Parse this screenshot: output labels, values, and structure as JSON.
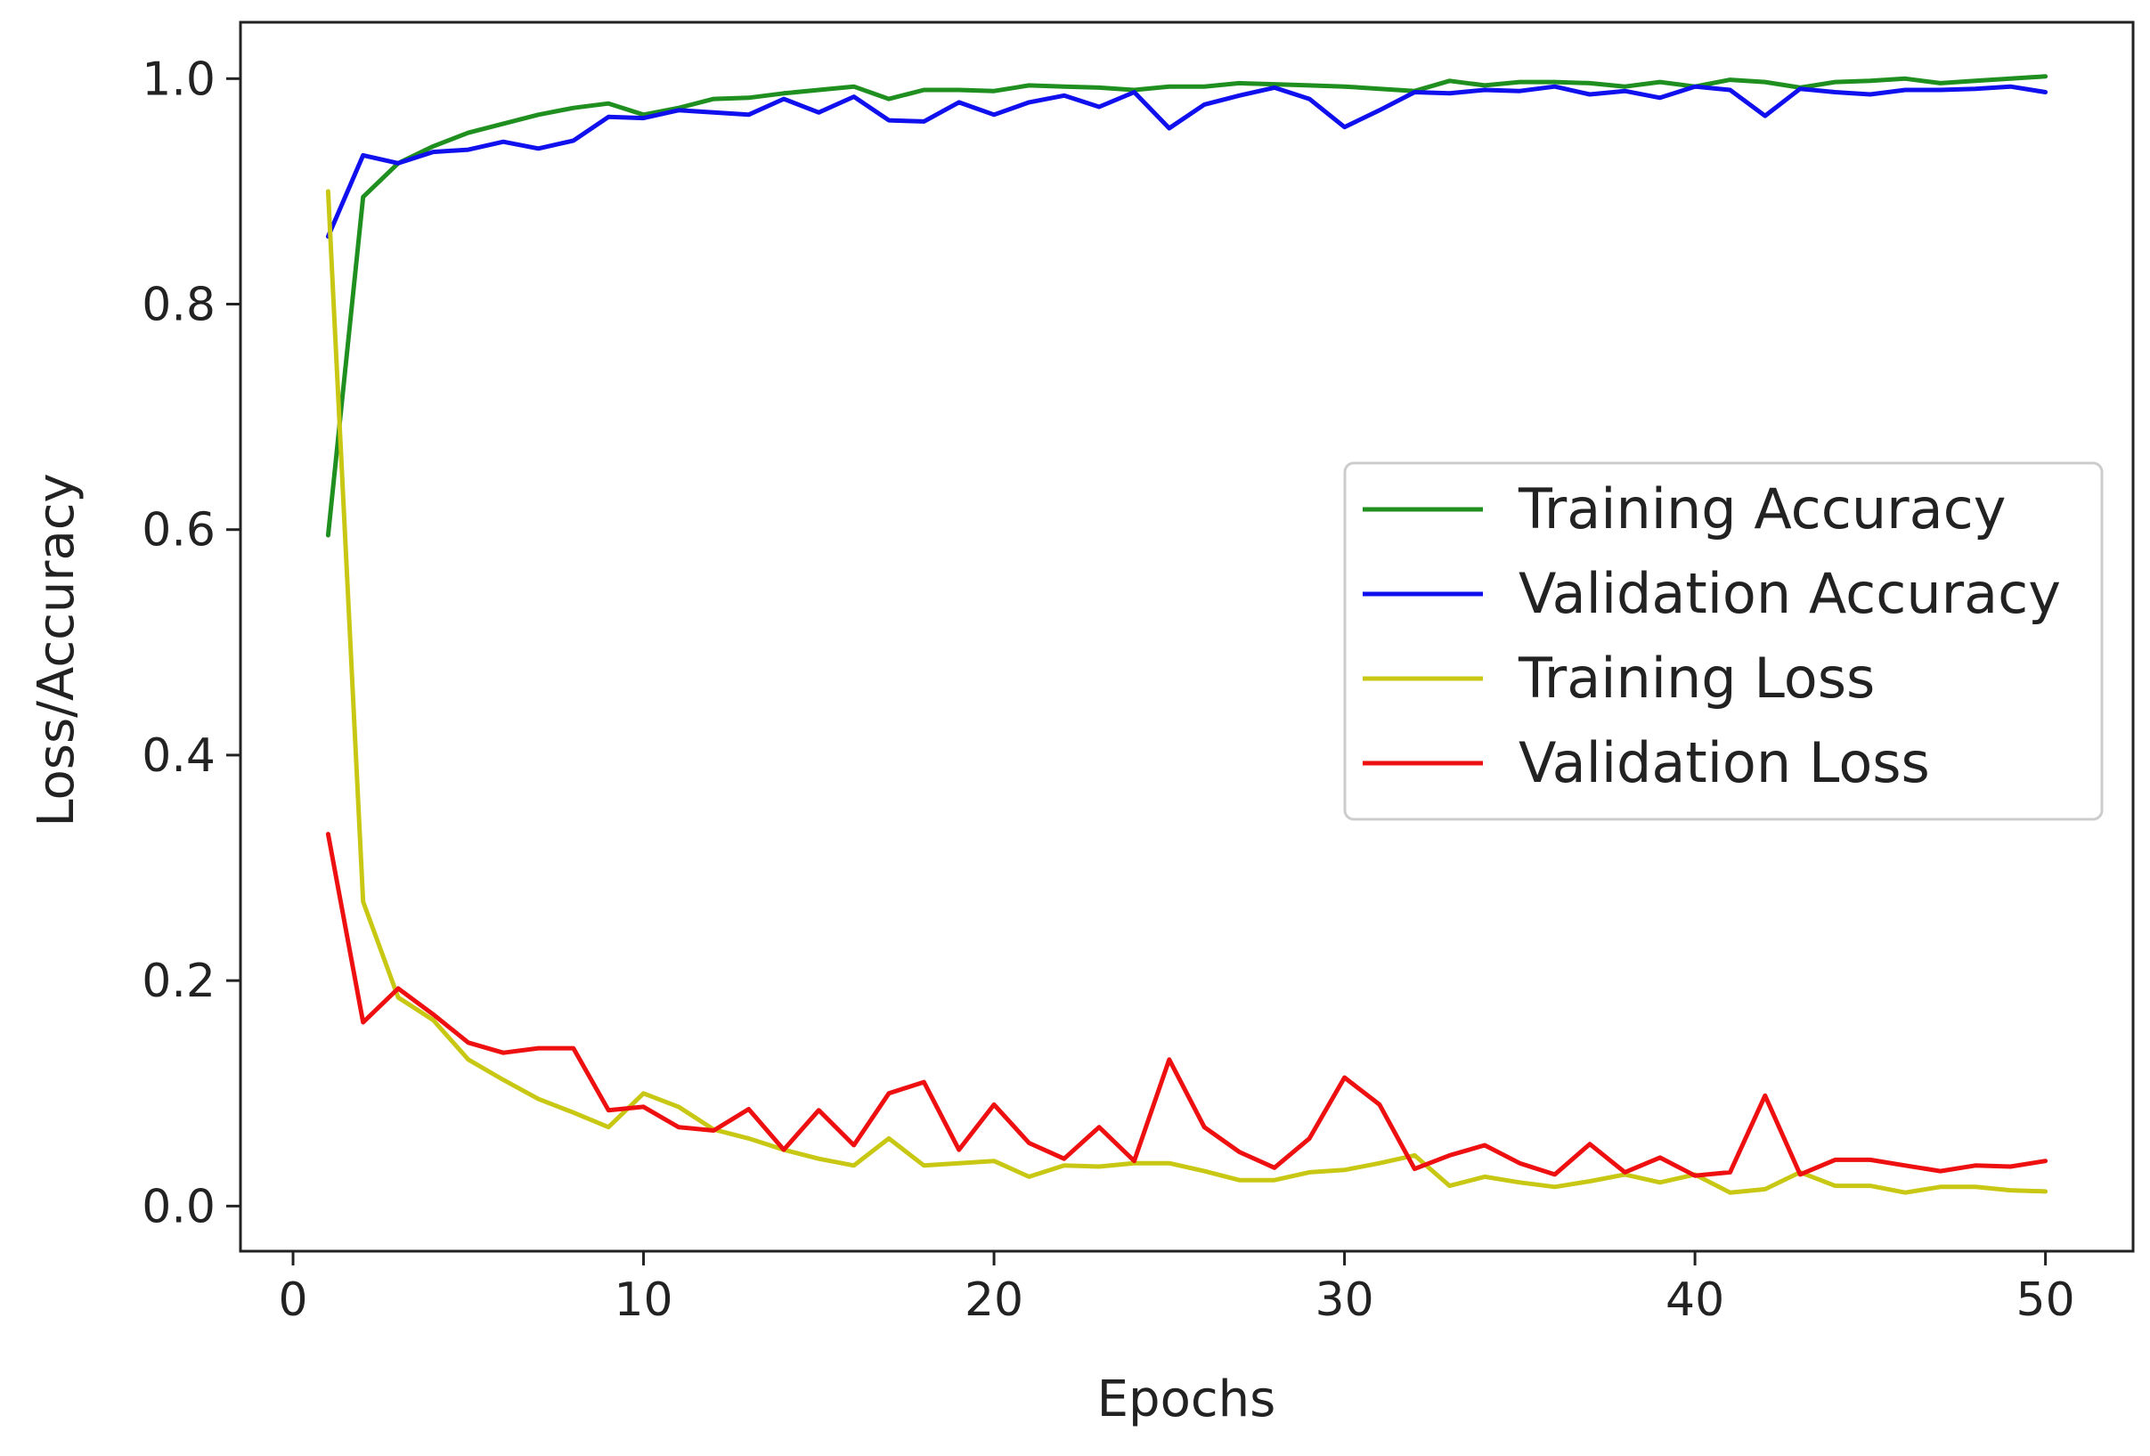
{
  "chart_data": {
    "type": "line",
    "title": "",
    "xlabel": "Epochs",
    "ylabel": "Loss/Accuracy",
    "xlim": [
      -1.5,
      52.5
    ],
    "ylim": [
      -0.04,
      1.05
    ],
    "xticks": [
      "0",
      "10",
      "20",
      "30",
      "40",
      "50"
    ],
    "yticks": [
      "0.0",
      "0.2",
      "0.4",
      "0.6",
      "0.8",
      "1.0"
    ],
    "grid": false,
    "legend_position": "center-right",
    "x": [
      1,
      2,
      3,
      4,
      5,
      6,
      7,
      8,
      9,
      10,
      11,
      12,
      13,
      14,
      15,
      16,
      17,
      18,
      19,
      20,
      21,
      22,
      23,
      24,
      25,
      26,
      27,
      28,
      29,
      30,
      31,
      32,
      33,
      34,
      35,
      36,
      37,
      38,
      39,
      40,
      41,
      42,
      43,
      44,
      45,
      46,
      47,
      48,
      49,
      50
    ],
    "series": [
      {
        "name": "Training Accuracy",
        "color": "#1f8f1f",
        "values": [
          0.595,
          0.895,
          0.925,
          0.94,
          0.952,
          0.96,
          0.968,
          0.974,
          0.978,
          0.968,
          0.974,
          0.982,
          0.983,
          0.987,
          0.99,
          0.993,
          0.982,
          0.99,
          0.99,
          0.989,
          0.994,
          0.993,
          0.992,
          0.99,
          0.993,
          0.993,
          0.996,
          0.995,
          0.994,
          0.993,
          0.991,
          0.989,
          0.998,
          0.994,
          0.997,
          0.997,
          0.996,
          0.993,
          0.997,
          0.993,
          0.999,
          0.997,
          0.992,
          0.997,
          0.998,
          1.0,
          0.996,
          0.998,
          1.0,
          1.002
        ]
      },
      {
        "name": "Validation Accuracy",
        "color": "#1010ee",
        "values": [
          0.86,
          0.932,
          0.925,
          0.935,
          0.937,
          0.944,
          0.938,
          0.945,
          0.966,
          0.965,
          0.972,
          0.97,
          0.968,
          0.982,
          0.97,
          0.984,
          0.963,
          0.962,
          0.979,
          0.968,
          0.979,
          0.985,
          0.975,
          0.988,
          0.956,
          0.977,
          0.985,
          0.992,
          0.982,
          0.957,
          0.972,
          0.988,
          0.987,
          0.99,
          0.989,
          0.993,
          0.986,
          0.989,
          0.983,
          0.993,
          0.99,
          0.967,
          0.991,
          0.988,
          0.986,
          0.99,
          0.99,
          0.991,
          0.993,
          0.988
        ]
      },
      {
        "name": "Training Loss",
        "color": "#c8c814",
        "values": [
          0.9,
          0.27,
          0.185,
          0.165,
          0.13,
          0.112,
          0.095,
          0.083,
          0.07,
          0.1,
          0.088,
          0.068,
          0.06,
          0.05,
          0.042,
          0.036,
          0.06,
          0.036,
          0.038,
          0.04,
          0.026,
          0.036,
          0.035,
          0.038,
          0.038,
          0.031,
          0.023,
          0.023,
          0.03,
          0.032,
          0.038,
          0.045,
          0.018,
          0.026,
          0.021,
          0.017,
          0.022,
          0.028,
          0.021,
          0.028,
          0.012,
          0.015,
          0.03,
          0.018,
          0.018,
          0.012,
          0.017,
          0.017,
          0.014,
          0.013
        ]
      },
      {
        "name": "Validation Loss",
        "color": "#ee1010",
        "values": [
          0.33,
          0.163,
          0.193,
          0.17,
          0.145,
          0.136,
          0.14,
          0.14,
          0.085,
          0.088,
          0.07,
          0.067,
          0.086,
          0.05,
          0.085,
          0.054,
          0.1,
          0.11,
          0.05,
          0.09,
          0.056,
          0.042,
          0.07,
          0.04,
          0.13,
          0.07,
          0.048,
          0.034,
          0.06,
          0.114,
          0.09,
          0.033,
          0.045,
          0.054,
          0.038,
          0.028,
          0.055,
          0.03,
          0.043,
          0.027,
          0.03,
          0.098,
          0.028,
          0.041,
          0.041,
          0.036,
          0.031,
          0.036,
          0.035,
          0.04
        ]
      }
    ]
  }
}
